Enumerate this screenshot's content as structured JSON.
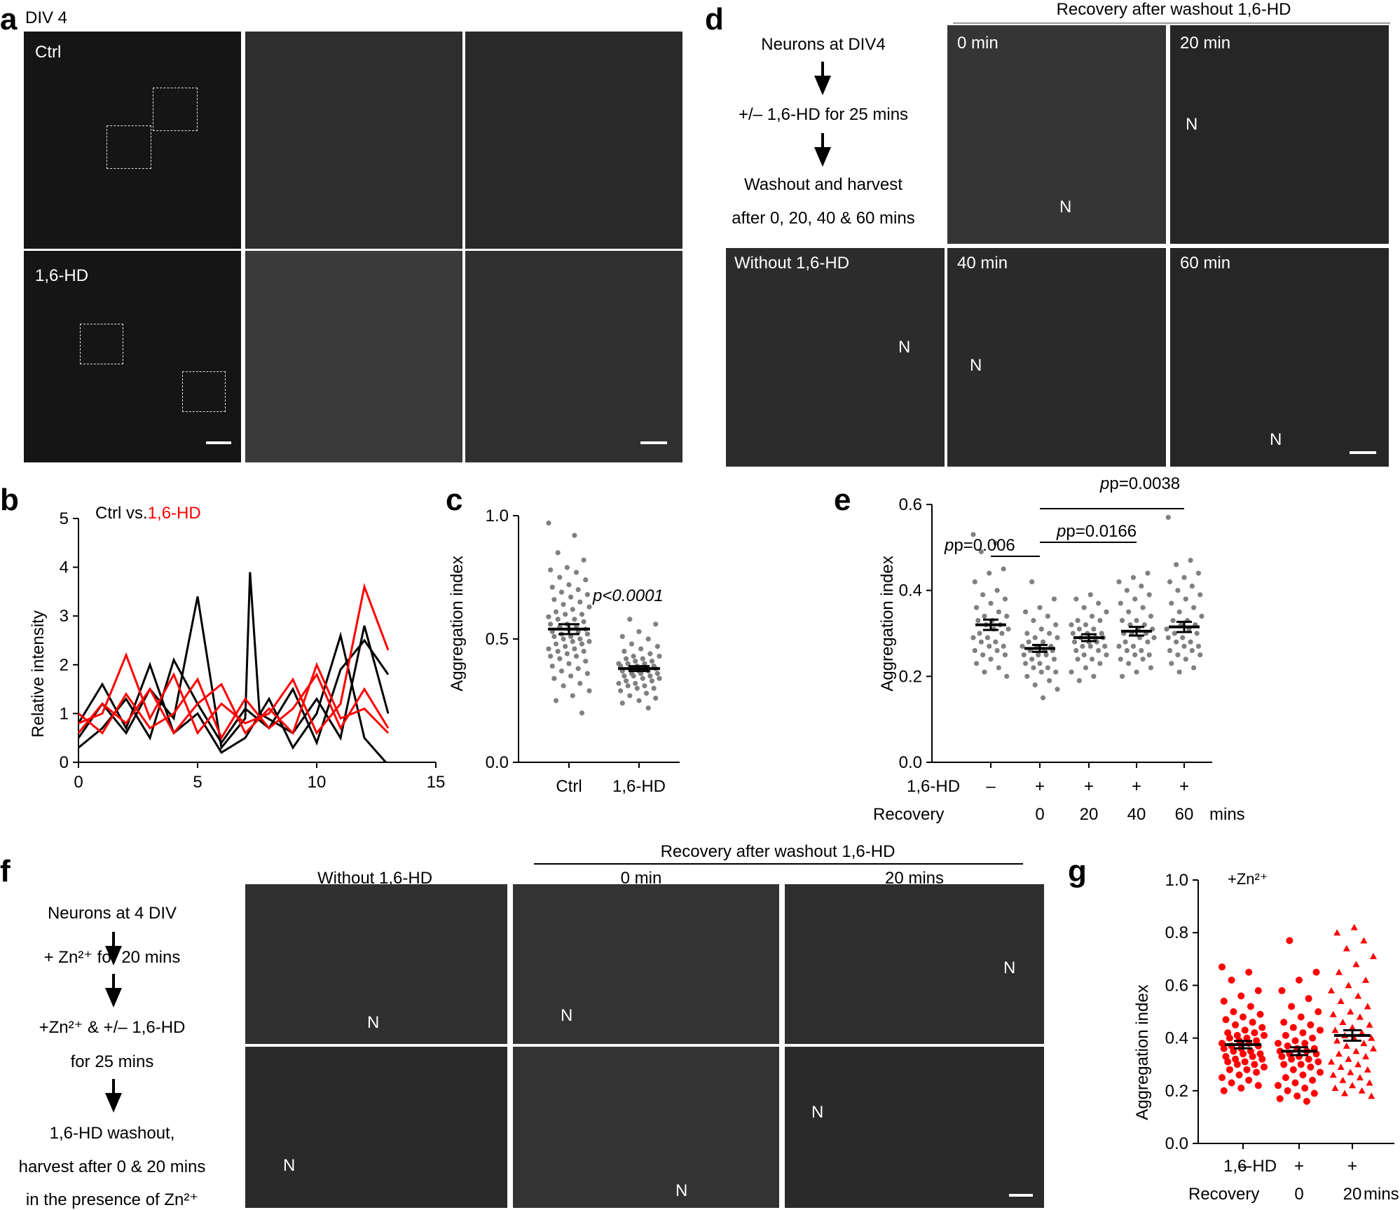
{
  "panel_a": {
    "letter": "a",
    "title": "DIV 4",
    "ctrl_label": "Ctrl",
    "hd_label": "1,6-HD"
  },
  "panel_b": {
    "letter": "b",
    "legend_ctrl": "Ctrl vs.",
    "legend_hd": "1,6-HD",
    "ylabel": "Relative intensity"
  },
  "panel_c": {
    "letter": "c",
    "ylabel": "Aggregation index",
    "pvalue": "p<0.0001"
  },
  "panel_d": {
    "letter": "d",
    "header": "Recovery after washout 1,6-HD",
    "flow": [
      "Neurons at DIV4",
      "+/– 1,6-HD for 25 mins",
      "Washout and harvest",
      "after 0, 20, 40 & 60 mins"
    ],
    "img_0": "0 min",
    "img_20": "20 min",
    "img_without": "Without 1,6-HD",
    "img_40": "40 min",
    "img_60": "60 min",
    "nucleus": "N"
  },
  "panel_e": {
    "letter": "e",
    "ylabel": "Aggregation index",
    "p1": "p=0.006",
    "p2": "p=0.0166",
    "p3": "p=0.0038",
    "row1_label": "1,6-HD",
    "row2_label": "Recovery",
    "unit": "mins"
  },
  "panel_f": {
    "letter": "f",
    "header": "Recovery after washout 1,6-HD",
    "col1": "Without 1,6-HD",
    "col2": "0 min",
    "col3": "20 mins",
    "flow": [
      "Neurons at 4 DIV",
      "+ Zn²⁺ for 20 mins",
      "+Zn²⁺ & +/– 1,6-HD",
      "for 25 mins",
      "1,6-HD washout,",
      "harvest after 0 & 20 mins",
      "in the presence of Zn²⁺"
    ],
    "nucleus": "N"
  },
  "panel_g": {
    "letter": "g",
    "title": "+Zn²⁺",
    "ylabel": "Aggregation index",
    "row1_label": "1,6-HD",
    "row2_label": "Recovery",
    "unit": "mins"
  },
  "chart_data": [
    {
      "panel": "b",
      "type": "line",
      "xlabel": "",
      "ylabel": "Relative intensity",
      "xlim": [
        0,
        15
      ],
      "ylim": [
        0,
        5
      ],
      "xticks": [
        "0",
        "5",
        "10",
        "15"
      ],
      "yticks": [
        "0",
        "1",
        "2",
        "3",
        "4",
        "5"
      ],
      "series": [
        {
          "color": "#000000",
          "values": [
            [
              0,
              0.5
            ],
            [
              1,
              1.2
            ],
            [
              2,
              0.6
            ],
            [
              3,
              1.5
            ],
            [
              4,
              0.9
            ],
            [
              5,
              3.4
            ],
            [
              6,
              0.3
            ],
            [
              7,
              0.9
            ],
            [
              7.2,
              3.9
            ],
            [
              7.6,
              1.0
            ],
            [
              9,
              0.6
            ],
            [
              10,
              1.3
            ],
            [
              11,
              0.5
            ],
            [
              12,
              2.8
            ],
            [
              13,
              1.0
            ]
          ]
        },
        {
          "color": "#000000",
          "values": [
            [
              0,
              0.3
            ],
            [
              1,
              0.7
            ],
            [
              2,
              1.3
            ],
            [
              3,
              0.5
            ],
            [
              4,
              2.1
            ],
            [
              5,
              1.2
            ],
            [
              6,
              0.4
            ],
            [
              7,
              1.1
            ],
            [
              8,
              0.7
            ],
            [
              9,
              1.5
            ],
            [
              10,
              0.4
            ],
            [
              11,
              1.9
            ],
            [
              12,
              2.5
            ],
            [
              13,
              1.8
            ]
          ]
        },
        {
          "color": "#000000",
          "values": [
            [
              0,
              0.8
            ],
            [
              1,
              1.6
            ],
            [
              2,
              0.7
            ],
            [
              3,
              2.0
            ],
            [
              4,
              0.6
            ],
            [
              5,
              1.0
            ],
            [
              6,
              0.2
            ],
            [
              7,
              0.5
            ],
            [
              8,
              1.3
            ],
            [
              9,
              0.3
            ],
            [
              10,
              1.0
            ],
            [
              11,
              2.6
            ],
            [
              12,
              0.5
            ],
            [
              12.9,
              0.0
            ]
          ]
        },
        {
          "color": "#ff0000",
          "values": [
            [
              0,
              0.8
            ],
            [
              1,
              1.0
            ],
            [
              2,
              2.2
            ],
            [
              3,
              0.9
            ],
            [
              4,
              1.8
            ],
            [
              5,
              0.6
            ],
            [
              6,
              1.2
            ],
            [
              7,
              0.8
            ],
            [
              8,
              1.0
            ],
            [
              9,
              1.7
            ],
            [
              10,
              0.6
            ],
            [
              11,
              1.2
            ],
            [
              12,
              3.6
            ],
            [
              13,
              2.3
            ]
          ]
        },
        {
          "color": "#ff0000",
          "values": [
            [
              0,
              1.0
            ],
            [
              1,
              0.6
            ],
            [
              2,
              1.4
            ],
            [
              3,
              0.7
            ],
            [
              4,
              1.0
            ],
            [
              5,
              1.7
            ],
            [
              6,
              0.5
            ],
            [
              7,
              1.3
            ],
            [
              8,
              0.7
            ],
            [
              9,
              1.1
            ],
            [
              10,
              1.8
            ],
            [
              11,
              0.7
            ],
            [
              12,
              1.5
            ],
            [
              13,
              0.7
            ]
          ]
        },
        {
          "color": "#ff0000",
          "values": [
            [
              0,
              0.6
            ],
            [
              1,
              1.2
            ],
            [
              2,
              0.8
            ],
            [
              3,
              1.5
            ],
            [
              4,
              0.6
            ],
            [
              5,
              1.2
            ],
            [
              6,
              1.6
            ],
            [
              7,
              0.6
            ],
            [
              8,
              1.1
            ],
            [
              9,
              0.6
            ],
            [
              10,
              2.0
            ],
            [
              11,
              0.9
            ],
            [
              12,
              1.1
            ],
            [
              13,
              0.6
            ]
          ]
        }
      ]
    },
    {
      "panel": "c",
      "type": "scatter",
      "ylabel": "Aggregation index",
      "categories": [
        "Ctrl",
        "1,6-HD"
      ],
      "ylim": [
        0,
        1
      ],
      "yticks": [
        "0.0",
        "0.5",
        "1.0"
      ],
      "means": [
        0.54,
        0.38
      ],
      "sem": [
        0.02,
        0.01
      ],
      "color": "#808080",
      "values": [
        [
          0.97,
          0.92,
          0.85,
          0.82,
          0.79,
          0.78,
          0.77,
          0.75,
          0.74,
          0.72,
          0.71,
          0.7,
          0.69,
          0.68,
          0.67,
          0.66,
          0.65,
          0.64,
          0.63,
          0.62,
          0.61,
          0.6,
          0.6,
          0.59,
          0.58,
          0.58,
          0.57,
          0.56,
          0.56,
          0.55,
          0.55,
          0.54,
          0.54,
          0.53,
          0.53,
          0.52,
          0.52,
          0.51,
          0.51,
          0.5,
          0.5,
          0.49,
          0.49,
          0.48,
          0.48,
          0.47,
          0.46,
          0.46,
          0.45,
          0.45,
          0.44,
          0.43,
          0.43,
          0.42,
          0.41,
          0.4,
          0.39,
          0.38,
          0.37,
          0.36,
          0.35,
          0.34,
          0.32,
          0.31,
          0.29,
          0.27,
          0.25,
          0.2
        ],
        [
          0.58,
          0.56,
          0.53,
          0.51,
          0.5,
          0.48,
          0.47,
          0.46,
          0.45,
          0.44,
          0.43,
          0.43,
          0.42,
          0.42,
          0.41,
          0.41,
          0.4,
          0.4,
          0.4,
          0.39,
          0.39,
          0.39,
          0.38,
          0.38,
          0.38,
          0.37,
          0.37,
          0.37,
          0.36,
          0.36,
          0.36,
          0.35,
          0.35,
          0.35,
          0.34,
          0.34,
          0.33,
          0.33,
          0.32,
          0.32,
          0.31,
          0.31,
          0.3,
          0.3,
          0.29,
          0.28,
          0.27,
          0.26,
          0.25,
          0.24,
          0.22
        ]
      ]
    },
    {
      "panel": "e",
      "type": "scatter",
      "ylabel": "Aggregation index",
      "ylim": [
        0,
        0.6
      ],
      "yticks": [
        "0.0",
        "0.2",
        "0.4",
        "0.6"
      ],
      "row1": [
        "–",
        "+",
        "+",
        "+",
        "+"
      ],
      "row2": [
        "",
        "0",
        "20",
        "40",
        "60"
      ],
      "means": [
        0.32,
        0.265,
        0.29,
        0.305,
        0.315
      ],
      "sem": [
        0.012,
        0.008,
        0.008,
        0.01,
        0.012
      ],
      "color": "#808080",
      "values": [
        [
          0.53,
          0.51,
          0.49,
          0.45,
          0.44,
          0.42,
          0.4,
          0.39,
          0.38,
          0.37,
          0.36,
          0.35,
          0.34,
          0.34,
          0.33,
          0.33,
          0.32,
          0.32,
          0.31,
          0.31,
          0.3,
          0.3,
          0.29,
          0.29,
          0.28,
          0.28,
          0.27,
          0.27,
          0.26,
          0.26,
          0.25,
          0.25,
          0.24,
          0.23,
          0.22,
          0.21,
          0.2
        ],
        [
          0.42,
          0.38,
          0.36,
          0.35,
          0.34,
          0.33,
          0.32,
          0.31,
          0.3,
          0.3,
          0.29,
          0.29,
          0.28,
          0.28,
          0.27,
          0.27,
          0.27,
          0.26,
          0.26,
          0.26,
          0.25,
          0.25,
          0.25,
          0.24,
          0.24,
          0.23,
          0.23,
          0.22,
          0.22,
          0.21,
          0.21,
          0.2,
          0.19,
          0.18,
          0.17,
          0.15
        ],
        [
          0.39,
          0.38,
          0.37,
          0.36,
          0.35,
          0.34,
          0.33,
          0.33,
          0.32,
          0.32,
          0.31,
          0.31,
          0.3,
          0.3,
          0.3,
          0.29,
          0.29,
          0.29,
          0.28,
          0.28,
          0.28,
          0.27,
          0.27,
          0.27,
          0.26,
          0.26,
          0.25,
          0.25,
          0.24,
          0.24,
          0.23,
          0.22,
          0.21,
          0.2,
          0.19
        ],
        [
          0.44,
          0.43,
          0.42,
          0.41,
          0.4,
          0.39,
          0.38,
          0.37,
          0.36,
          0.35,
          0.34,
          0.33,
          0.33,
          0.32,
          0.32,
          0.31,
          0.31,
          0.3,
          0.3,
          0.3,
          0.29,
          0.29,
          0.28,
          0.28,
          0.27,
          0.27,
          0.26,
          0.26,
          0.25,
          0.25,
          0.24,
          0.24,
          0.23,
          0.22,
          0.21,
          0.2
        ],
        [
          0.57,
          0.47,
          0.46,
          0.44,
          0.43,
          0.42,
          0.41,
          0.4,
          0.39,
          0.38,
          0.37,
          0.36,
          0.35,
          0.34,
          0.33,
          0.33,
          0.32,
          0.32,
          0.31,
          0.31,
          0.3,
          0.3,
          0.29,
          0.29,
          0.28,
          0.28,
          0.27,
          0.27,
          0.26,
          0.26,
          0.25,
          0.25,
          0.24,
          0.23,
          0.22,
          0.21
        ]
      ]
    },
    {
      "panel": "g",
      "type": "scatter",
      "title": "+Zn²⁺",
      "ylabel": "Aggregation index",
      "ylim": [
        0,
        1
      ],
      "yticks": [
        "0.0",
        "0.2",
        "0.4",
        "0.6",
        "0.8",
        "1.0"
      ],
      "row1": [
        "–",
        "+",
        "+"
      ],
      "row2": [
        "",
        "0",
        "20"
      ],
      "means": [
        0.375,
        0.35,
        0.41
      ],
      "sem": [
        0.014,
        0.015,
        0.02
      ],
      "color": "#ff0000",
      "values": [
        [
          0.67,
          0.65,
          0.62,
          0.58,
          0.56,
          0.54,
          0.52,
          0.5,
          0.49,
          0.48,
          0.47,
          0.46,
          0.45,
          0.44,
          0.43,
          0.42,
          0.42,
          0.41,
          0.41,
          0.4,
          0.4,
          0.39,
          0.39,
          0.38,
          0.38,
          0.37,
          0.37,
          0.36,
          0.36,
          0.35,
          0.35,
          0.34,
          0.34,
          0.33,
          0.33,
          0.32,
          0.32,
          0.31,
          0.31,
          0.3,
          0.3,
          0.29,
          0.28,
          0.28,
          0.27,
          0.26,
          0.25,
          0.24,
          0.23,
          0.22,
          0.21,
          0.2
        ],
        [
          0.77,
          0.65,
          0.62,
          0.58,
          0.55,
          0.52,
          0.5,
          0.48,
          0.46,
          0.45,
          0.44,
          0.43,
          0.42,
          0.41,
          0.4,
          0.39,
          0.38,
          0.38,
          0.37,
          0.36,
          0.36,
          0.35,
          0.35,
          0.34,
          0.34,
          0.33,
          0.33,
          0.32,
          0.32,
          0.31,
          0.3,
          0.3,
          0.29,
          0.28,
          0.27,
          0.26,
          0.25,
          0.24,
          0.23,
          0.22,
          0.21,
          0.2,
          0.19,
          0.18,
          0.17,
          0.16
        ],
        [
          0.82,
          0.8,
          0.77,
          0.74,
          0.71,
          0.68,
          0.65,
          0.62,
          0.6,
          0.58,
          0.56,
          0.54,
          0.52,
          0.5,
          0.49,
          0.48,
          0.46,
          0.45,
          0.44,
          0.43,
          0.42,
          0.41,
          0.4,
          0.4,
          0.39,
          0.38,
          0.37,
          0.36,
          0.35,
          0.34,
          0.33,
          0.32,
          0.31,
          0.3,
          0.29,
          0.28,
          0.27,
          0.26,
          0.25,
          0.24,
          0.23,
          0.22,
          0.21,
          0.2,
          0.19,
          0.18
        ]
      ]
    }
  ]
}
